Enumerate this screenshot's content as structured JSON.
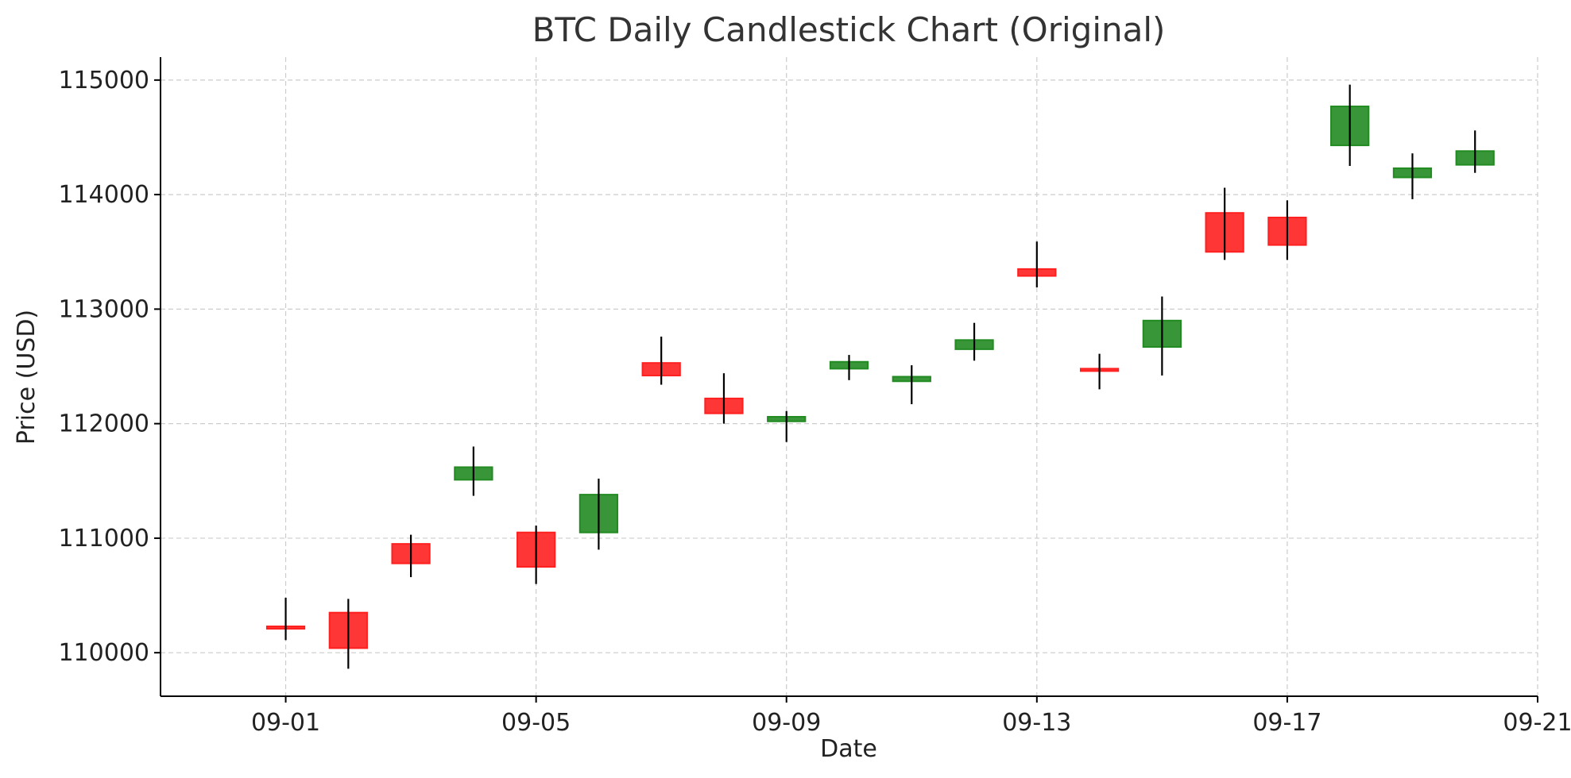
{
  "chart_data": {
    "type": "candlestick",
    "title": "BTC Daily Candlestick Chart (Original)",
    "xlabel": "Date",
    "ylabel": "Price (USD)",
    "xlim": [
      "2025-08-30",
      "2025-09-21"
    ],
    "ylim": [
      109620,
      115200
    ],
    "x_ticks": [
      {
        "date": "2025-09-01",
        "label": "09-01"
      },
      {
        "date": "2025-09-05",
        "label": "09-05"
      },
      {
        "date": "2025-09-09",
        "label": "09-09"
      },
      {
        "date": "2025-09-13",
        "label": "09-13"
      },
      {
        "date": "2025-09-17",
        "label": "09-17"
      },
      {
        "date": "2025-09-21",
        "label": "09-21"
      }
    ],
    "y_ticks": [
      110000,
      111000,
      112000,
      113000,
      114000,
      115000
    ],
    "grid": true,
    "colors": {
      "up": "#228B22",
      "down": "#FF2020",
      "wick": "#000000"
    },
    "candles": [
      {
        "date": "2025-09-01",
        "open": 110230,
        "high": 110480,
        "low": 110110,
        "close": 110220
      },
      {
        "date": "2025-09-02",
        "open": 110350,
        "high": 110470,
        "low": 109860,
        "close": 110040
      },
      {
        "date": "2025-09-03",
        "open": 110950,
        "high": 111030,
        "low": 110660,
        "close": 110780
      },
      {
        "date": "2025-09-04",
        "open": 111510,
        "high": 111800,
        "low": 111370,
        "close": 111620
      },
      {
        "date": "2025-09-05",
        "open": 111050,
        "high": 111110,
        "low": 110600,
        "close": 110750
      },
      {
        "date": "2025-09-06",
        "open": 111050,
        "high": 111520,
        "low": 110900,
        "close": 111380
      },
      {
        "date": "2025-09-07",
        "open": 112530,
        "high": 112760,
        "low": 112340,
        "close": 112420
      },
      {
        "date": "2025-09-08",
        "open": 112220,
        "high": 112440,
        "low": 112000,
        "close": 112090
      },
      {
        "date": "2025-09-09",
        "open": 112020,
        "high": 112110,
        "low": 111840,
        "close": 112060
      },
      {
        "date": "2025-09-10",
        "open": 112480,
        "high": 112600,
        "low": 112380,
        "close": 112540
      },
      {
        "date": "2025-09-11",
        "open": 112370,
        "high": 112510,
        "low": 112170,
        "close": 112410
      },
      {
        "date": "2025-09-12",
        "open": 112650,
        "high": 112880,
        "low": 112550,
        "close": 112730
      },
      {
        "date": "2025-09-13",
        "open": 113350,
        "high": 113590,
        "low": 113190,
        "close": 113290
      },
      {
        "date": "2025-09-14",
        "open": 112480,
        "high": 112610,
        "low": 112300,
        "close": 112470
      },
      {
        "date": "2025-09-15",
        "open": 112670,
        "high": 113110,
        "low": 112420,
        "close": 112900
      },
      {
        "date": "2025-09-16",
        "open": 113840,
        "high": 114060,
        "low": 113430,
        "close": 113500
      },
      {
        "date": "2025-09-17",
        "open": 113800,
        "high": 113950,
        "low": 113430,
        "close": 113560
      },
      {
        "date": "2025-09-18",
        "open": 114430,
        "high": 114960,
        "low": 114250,
        "close": 114770
      },
      {
        "date": "2025-09-19",
        "open": 114150,
        "high": 114360,
        "low": 113960,
        "close": 114230
      },
      {
        "date": "2025-09-20",
        "open": 114260,
        "high": 114560,
        "low": 114190,
        "close": 114380
      }
    ]
  }
}
